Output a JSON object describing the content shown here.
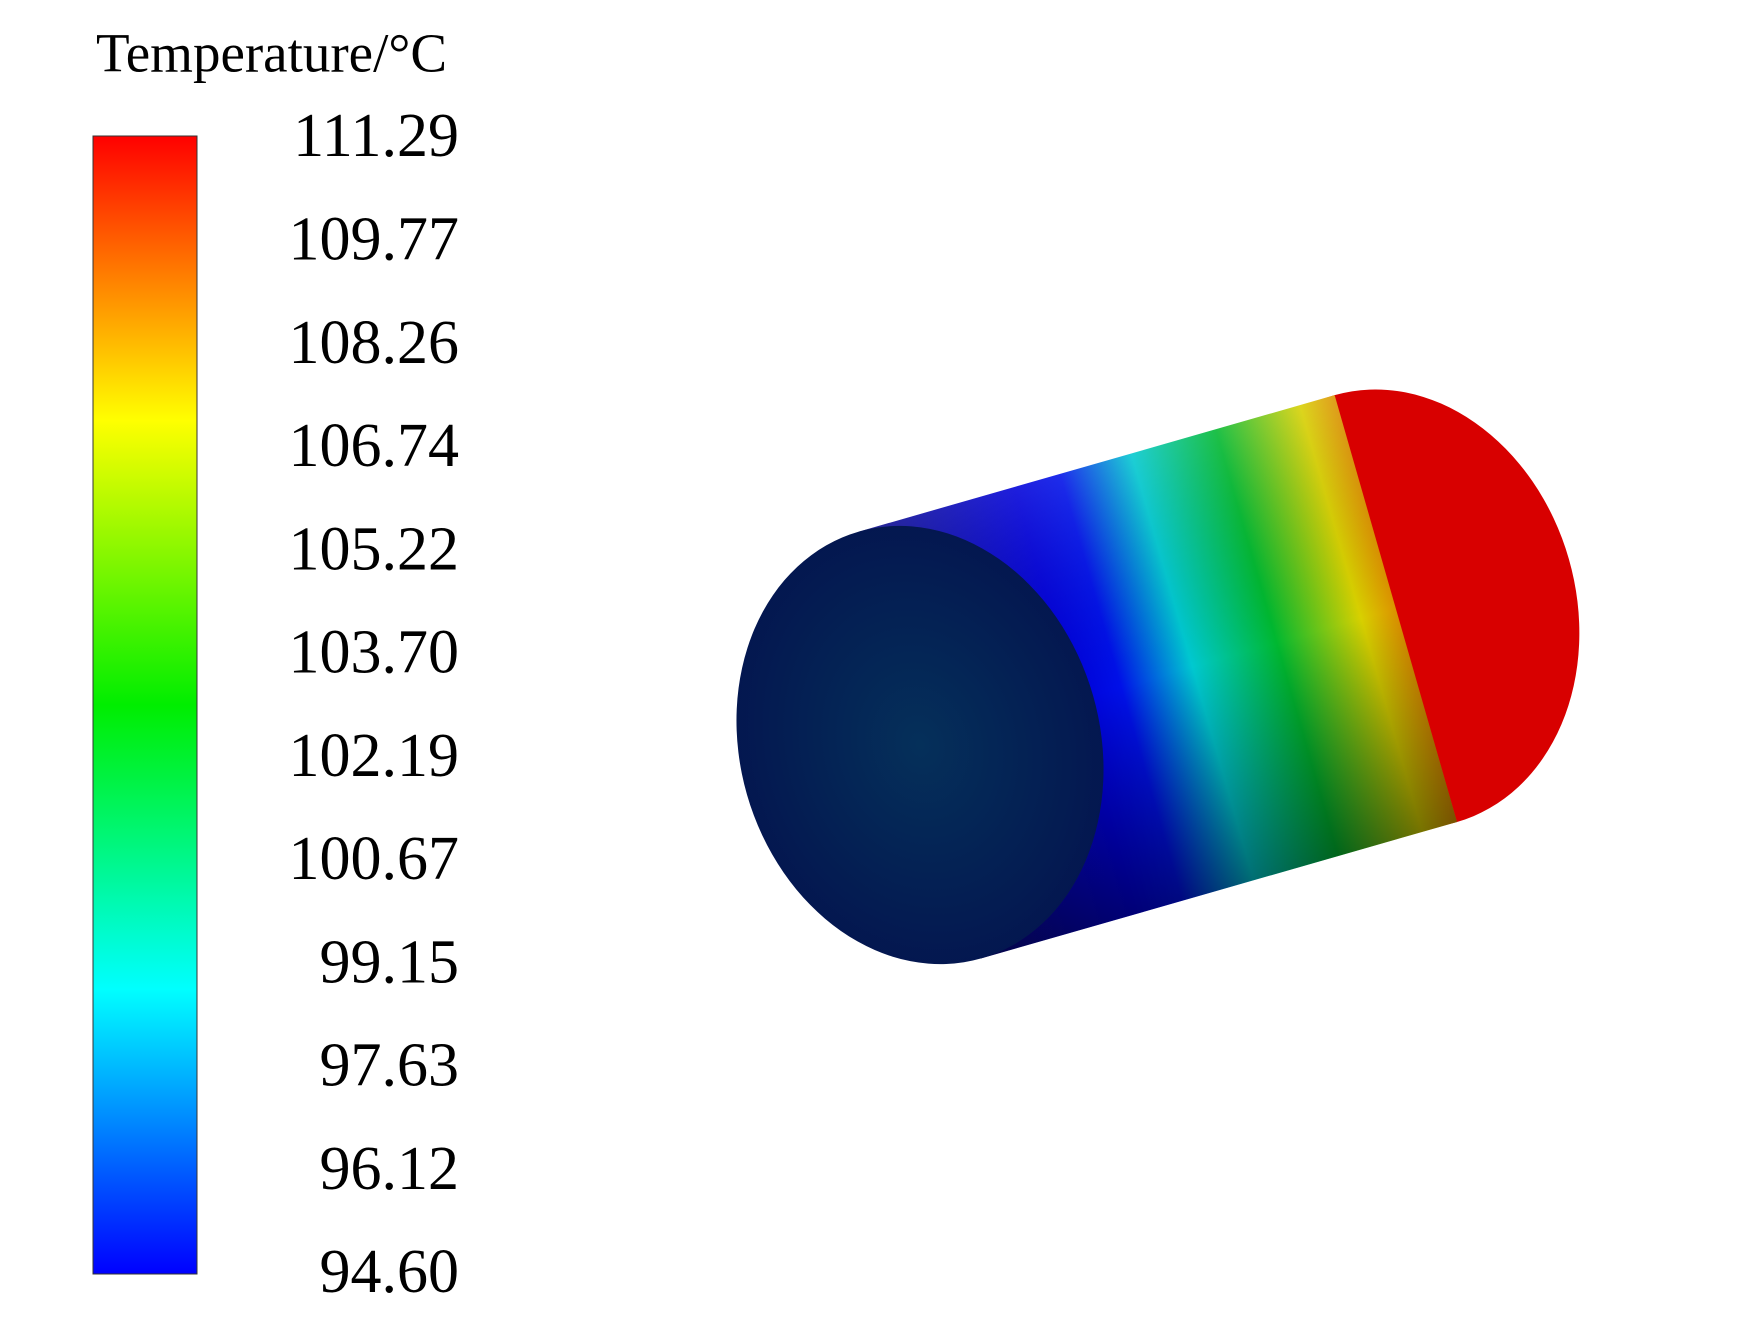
{
  "legend": {
    "title": "Temperature/°C",
    "labels": [
      "111.29",
      "109.77",
      "108.26",
      "106.74",
      "105.22",
      "103.70",
      "102.19",
      "100.67",
      "99.15",
      "97.63",
      "96.12",
      "94.60"
    ]
  }
}
